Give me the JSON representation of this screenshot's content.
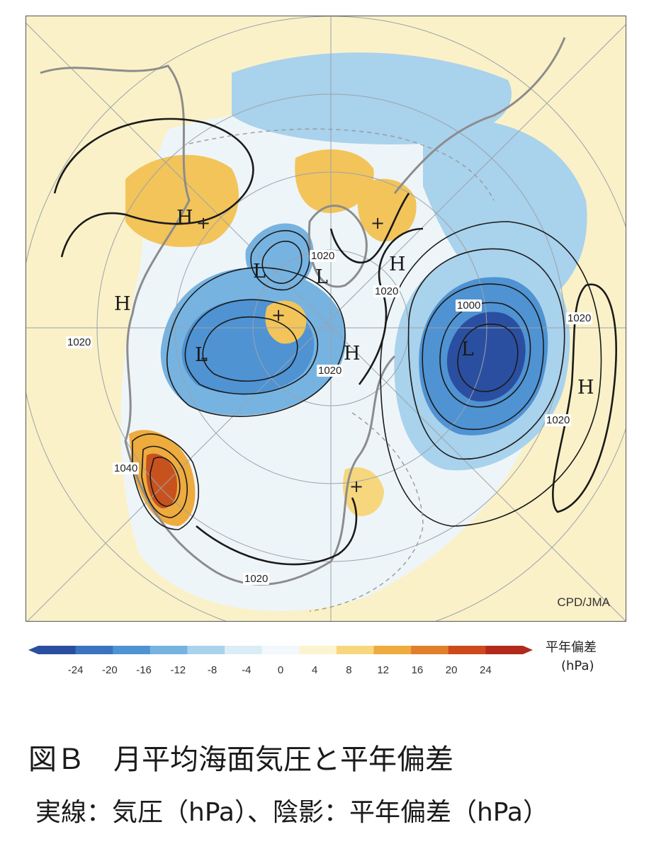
{
  "map": {
    "credit": "CPD/JMA",
    "contour_labels": [
      "1020",
      "1020",
      "1020",
      "1020",
      "1000",
      "1020",
      "1020",
      "1040",
      "1020",
      "1020"
    ],
    "pressure_centers": [
      "H",
      "H",
      "H",
      "H",
      "H",
      "L",
      "L",
      "L",
      "L"
    ],
    "anomaly_signs": [
      "+",
      "+",
      "+",
      "+",
      "-"
    ],
    "colors": {
      "negative_strong": "#2b4fa0",
      "negative_mid": "#4a90d4",
      "negative_light": "#a9d2ec",
      "neutral": "#eef5f9",
      "positive_light": "#fbf1c8",
      "positive_mid": "#f2c45a",
      "positive_strong": "#c8521e"
    }
  },
  "colorbar": {
    "ticks": [
      "-24",
      "-20",
      "-16",
      "-12",
      "-8",
      "-4",
      "0",
      "4",
      "8",
      "12",
      "16",
      "20",
      "24"
    ],
    "colors": [
      "#2a4f9e",
      "#3a74c0",
      "#4f93d3",
      "#76b3e1",
      "#a9d3ed",
      "#daecf6",
      "#f2f8fb",
      "#fcf3cf",
      "#f7d77e",
      "#eeab3e",
      "#e07f2c",
      "#cc4a1c",
      "#b12a1c"
    ],
    "unit_line1": "平年偏差",
    "unit_line2": "(hPa)"
  },
  "figure": {
    "title": "図Ｂ　月平均海面気圧と平年偏差",
    "caption": "実線：気圧（hPa）、陰影：平年偏差（hPa）"
  }
}
